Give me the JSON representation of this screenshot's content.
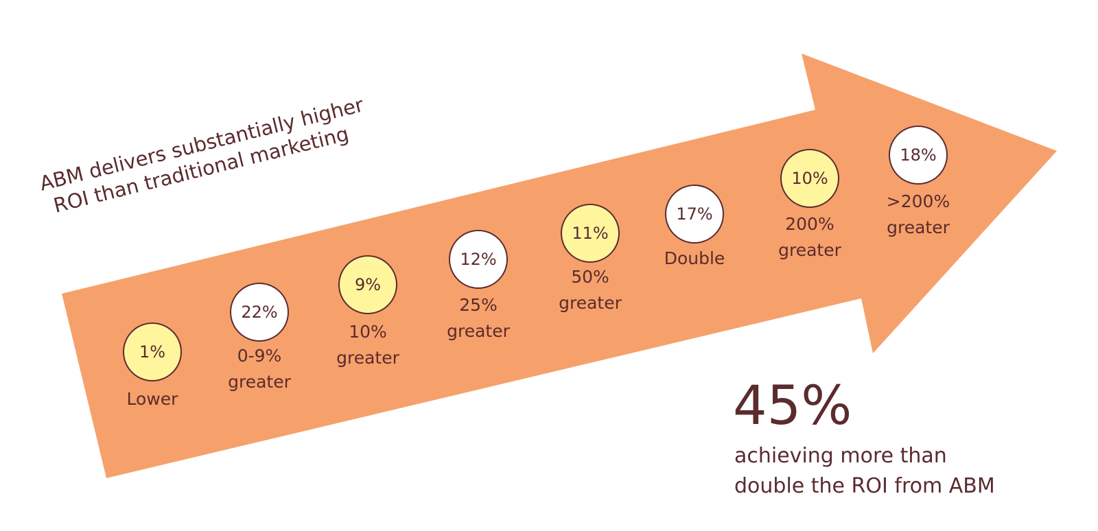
{
  "title": {
    "lines": [
      "ABM delivers substantially higher",
      "ROI than traditional marketing"
    ]
  },
  "items": [
    {
      "value": "1%",
      "label": [
        "Lower"
      ],
      "fill": "#fff59d"
    },
    {
      "value": "22%",
      "label": [
        "0-9%",
        "greater"
      ],
      "fill": "#ffffff"
    },
    {
      "value": "9%",
      "label": [
        "10%",
        "greater"
      ],
      "fill": "#fff59d"
    },
    {
      "value": "12%",
      "label": [
        "25%",
        "greater"
      ],
      "fill": "#ffffff"
    },
    {
      "value": "11%",
      "label": [
        "50%",
        "greater"
      ],
      "fill": "#fff59d"
    },
    {
      "value": "17%",
      "label": [
        "Double"
      ],
      "fill": "#ffffff"
    },
    {
      "value": "10%",
      "label": [
        "200%",
        "greater"
      ],
      "fill": "#fff59d"
    },
    {
      "value": "18%",
      "label": [
        ">200%",
        "greater"
      ],
      "fill": "#ffffff"
    }
  ],
  "highlight": {
    "value": "45%",
    "lines": [
      "achieving more than",
      "double the ROI from ABM"
    ]
  },
  "arrow_color": "#f6a16b"
}
